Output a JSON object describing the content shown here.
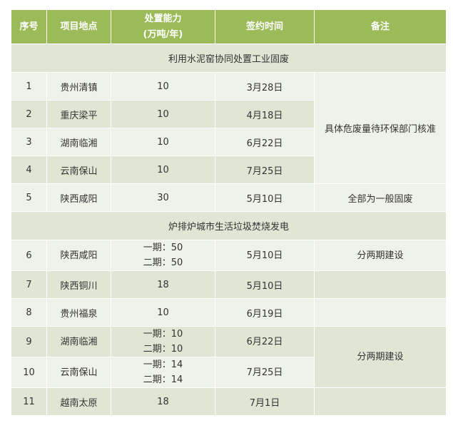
{
  "headers": {
    "no": "序号",
    "site": "项目地点",
    "capacity": "处置能力",
    "capacity_unit": "(万吨/年)",
    "date": "签约时间",
    "remark": "备注"
  },
  "sections": [
    "利用水泥窑协同处置工业固废",
    "炉排炉城市生活垃圾焚烧发电"
  ],
  "rows": [
    {
      "no": "1",
      "site": "贵州清镇",
      "cap": "10",
      "date": "3月28日"
    },
    {
      "no": "2",
      "site": "重庆梁平",
      "cap": "10",
      "date": "4月18日"
    },
    {
      "no": "3",
      "site": "湖南临湘",
      "cap": "10",
      "date": "6月22日"
    },
    {
      "no": "4",
      "site": "云南保山",
      "cap": "10",
      "date": "7月25日"
    },
    {
      "no": "5",
      "site": "陕西咸阳",
      "cap": "30",
      "date": "5月10日"
    },
    {
      "no": "6",
      "site": "陕西咸阳",
      "cap": "一期：50",
      "cap2": "二期：50",
      "date": "5月10日"
    },
    {
      "no": "7",
      "site": "陕西铜川",
      "cap": "18",
      "date": "5月10日"
    },
    {
      "no": "8",
      "site": "贵州福泉",
      "cap": "10",
      "date": "6月19日"
    },
    {
      "no": "9",
      "site": "湖南临湘",
      "cap": "一期：10",
      "cap2": "二期：10",
      "date": "6月22日"
    },
    {
      "no": "10",
      "site": "云南保山",
      "cap": "一期：14",
      "cap2": "二期：14",
      "date": "7月25日"
    },
    {
      "no": "11",
      "site": "越南太原",
      "cap": "18",
      "date": "7月1日"
    }
  ],
  "remarks": {
    "r1_4": "具体危废量待环保部门核准",
    "r5": "全部为一般固废",
    "r6": "分两期建设",
    "r9_10": "分两期建设"
  },
  "colors": {
    "header": "#9bbb59",
    "row_light": "#eff2e9",
    "row_dark": "#dfe7d4"
  }
}
